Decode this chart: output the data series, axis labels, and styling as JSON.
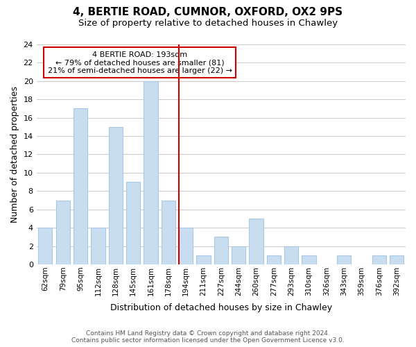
{
  "title": "4, BERTIE ROAD, CUMNOR, OXFORD, OX2 9PS",
  "subtitle": "Size of property relative to detached houses in Chawley",
  "xlabel": "Distribution of detached houses by size in Chawley",
  "ylabel": "Number of detached properties",
  "bins": [
    "62sqm",
    "79sqm",
    "95sqm",
    "112sqm",
    "128sqm",
    "145sqm",
    "161sqm",
    "178sqm",
    "194sqm",
    "211sqm",
    "227sqm",
    "244sqm",
    "260sqm",
    "277sqm",
    "293sqm",
    "310sqm",
    "326sqm",
    "343sqm",
    "359sqm",
    "376sqm",
    "392sqm"
  ],
  "counts": [
    4,
    7,
    17,
    4,
    15,
    9,
    20,
    7,
    4,
    1,
    3,
    2,
    5,
    1,
    2,
    1,
    0,
    1,
    0,
    1,
    1
  ],
  "bar_color": "#c9ddf0",
  "bar_edgecolor": "#a8c8e8",
  "marker_index": 8,
  "annotation_title": "4 BERTIE ROAD: 193sqm",
  "annotation_line1": "← 79% of detached houses are smaller (81)",
  "annotation_line2": "21% of semi-detached houses are larger (22) →",
  "annotation_box_color": "#ffffff",
  "annotation_box_edgecolor": "#cc0000",
  "vline_color": "#cc0000",
  "ylim": [
    0,
    24
  ],
  "yticks": [
    0,
    2,
    4,
    6,
    8,
    10,
    12,
    14,
    16,
    18,
    20,
    22,
    24
  ],
  "footer_line1": "Contains HM Land Registry data © Crown copyright and database right 2024.",
  "footer_line2": "Contains public sector information licensed under the Open Government Licence v3.0.",
  "bg_color": "#ffffff",
  "grid_color": "#cccccc"
}
